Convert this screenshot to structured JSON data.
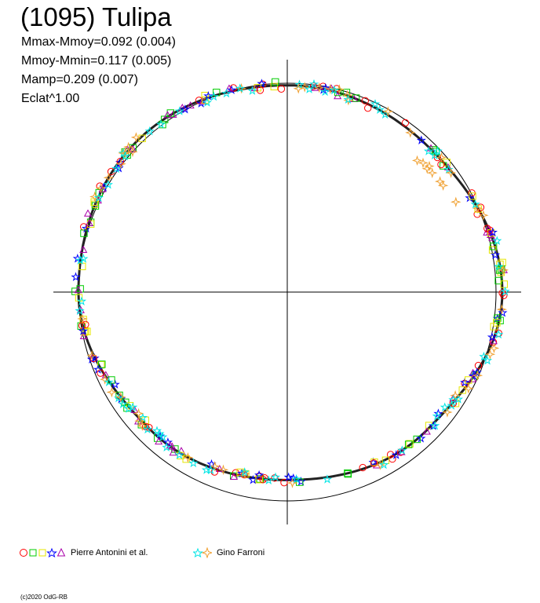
{
  "title": "(1095) Tulipa",
  "stats": [
    "Mmax-Mmoy=0.092 (0.004)",
    "Mmoy-Mmin=0.117 (0.005)",
    "Mamp=0.209 (0.007)",
    "Eclat^1.00"
  ],
  "legend": [
    {
      "label": "Pierre Antonini et al.",
      "colors": [
        "#ff0000",
        "#00cc00",
        "#e6e600",
        "#0000ff",
        "#aa00aa"
      ],
      "symbols": [
        "circle",
        "square",
        "square",
        "star",
        "triangle"
      ]
    },
    {
      "label": "Gino Farroni",
      "colors": [
        "#00e5e5",
        "#f0a030"
      ],
      "symbols": [
        "star",
        "diamond-star"
      ]
    }
  ],
  "copyright": "(c)2020 OdG-RB",
  "chart_data": {
    "type": "scatter",
    "projection": "polar",
    "reference_radius": 1.0,
    "amplitude_mag": 0.209,
    "max_minus_mean": 0.092,
    "mean_minus_min": 0.117,
    "exponent": 1.0,
    "curve_radius_by_angle_deg": [
      [
        0,
        1.03
      ],
      [
        45,
        0.97
      ],
      [
        90,
        0.99
      ],
      [
        135,
        1.02
      ],
      [
        180,
        1.0
      ],
      [
        225,
        0.93
      ],
      [
        270,
        0.9
      ],
      [
        315,
        0.94
      ]
    ],
    "series": [
      {
        "name": "Pierre Antonini et al.",
        "color_set": [
          "#ff0000",
          "#00cc00",
          "#e6e600",
          "#0000ff",
          "#aa00aa"
        ]
      },
      {
        "name": "Gino Farroni",
        "color_set": [
          "#00e5e5",
          "#f0a030"
        ]
      }
    ]
  }
}
